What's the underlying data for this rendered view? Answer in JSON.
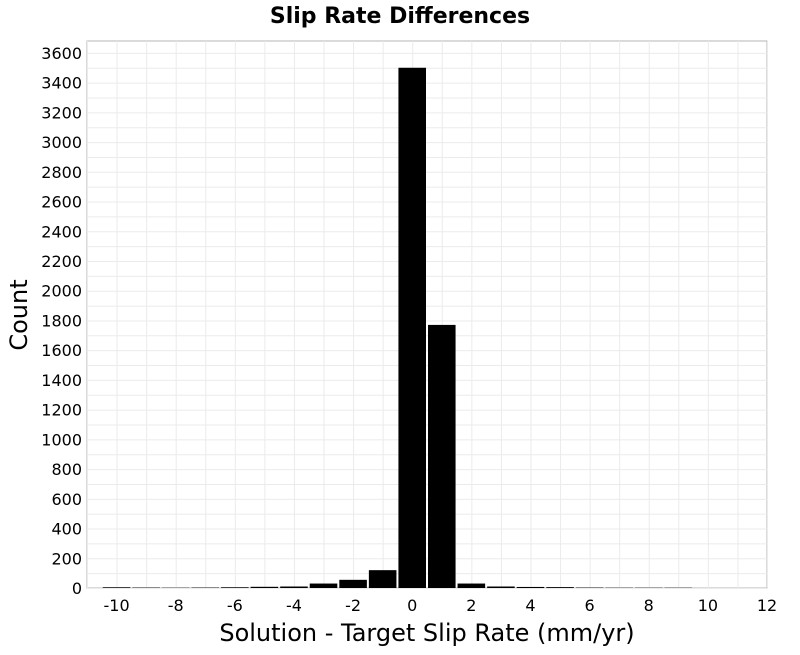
{
  "chart_data": {
    "type": "bar",
    "title": "Slip Rate Differences",
    "xlabel": "Solution - Target Slip Rate (mm/yr)",
    "ylabel": "Count",
    "xlim": [
      -11,
      12
    ],
    "ylim": [
      0,
      3680
    ],
    "xticks": [
      -10,
      -8,
      -6,
      -4,
      -2,
      0,
      2,
      4,
      6,
      8,
      10,
      12
    ],
    "yticks": [
      0,
      200,
      400,
      600,
      800,
      1000,
      1200,
      1400,
      1600,
      1800,
      2000,
      2200,
      2400,
      2600,
      2800,
      3000,
      3200,
      3400,
      3600
    ],
    "grid": true,
    "bar_width": 1,
    "bar_color": "#000000",
    "bars": [
      {
        "x": -10,
        "value": 5
      },
      {
        "x": -9,
        "value": 3
      },
      {
        "x": -8,
        "value": 2
      },
      {
        "x": -7,
        "value": 3
      },
      {
        "x": -6,
        "value": 5
      },
      {
        "x": -5,
        "value": 8
      },
      {
        "x": -4,
        "value": 10
      },
      {
        "x": -3,
        "value": 30
      },
      {
        "x": -2,
        "value": 55
      },
      {
        "x": -1,
        "value": 120
      },
      {
        "x": 0,
        "value": 3500
      },
      {
        "x": 1,
        "value": 1770
      },
      {
        "x": 2,
        "value": 30
      },
      {
        "x": 3,
        "value": 10
      },
      {
        "x": 4,
        "value": 7
      },
      {
        "x": 5,
        "value": 6
      },
      {
        "x": 6,
        "value": 3
      },
      {
        "x": 7,
        "value": 2
      },
      {
        "x": 8,
        "value": 2
      },
      {
        "x": 9,
        "value": 2
      }
    ]
  }
}
